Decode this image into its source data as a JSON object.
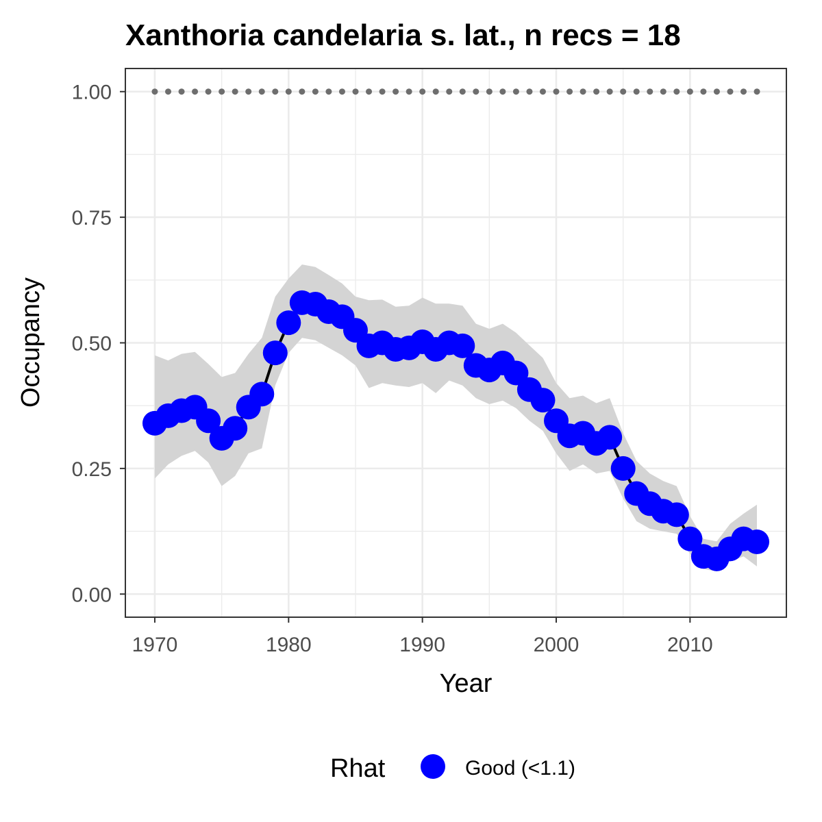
{
  "chart_data": {
    "type": "line",
    "title": "Xanthoria candelaria s. lat., n recs = 18",
    "xlabel": "Year",
    "ylabel": "Occupancy",
    "xlim": [
      1967.8,
      2017.2
    ],
    "ylim": [
      -0.046,
      1.046
    ],
    "x_ticks": [
      1970,
      1980,
      1990,
      2000,
      2010
    ],
    "x_tick_labels": [
      "1970",
      "1980",
      "1990",
      "2000",
      "2010"
    ],
    "y_ticks": [
      0,
      0.25,
      0.5,
      0.75,
      1.0
    ],
    "y_tick_labels": [
      "0.00",
      "0.25",
      "0.50",
      "0.75",
      "1.00"
    ],
    "grid": true,
    "x": [
      1970,
      1971,
      1972,
      1973,
      1974,
      1975,
      1976,
      1977,
      1978,
      1979,
      1980,
      1981,
      1982,
      1983,
      1984,
      1985,
      1986,
      1987,
      1988,
      1989,
      1990,
      1991,
      1992,
      1993,
      1994,
      1995,
      1996,
      1997,
      1998,
      1999,
      2000,
      2001,
      2002,
      2003,
      2004,
      2005,
      2006,
      2007,
      2008,
      2009,
      2010,
      2011,
      2012,
      2013,
      2014,
      2015
    ],
    "series": [
      {
        "values": [
          0.34,
          0.355,
          0.365,
          0.372,
          0.345,
          0.31,
          0.33,
          0.372,
          0.398,
          0.48,
          0.54,
          0.58,
          0.577,
          0.562,
          0.552,
          0.525,
          0.494,
          0.5,
          0.487,
          0.49,
          0.502,
          0.487,
          0.5,
          0.494,
          0.455,
          0.446,
          0.46,
          0.44,
          0.407,
          0.386,
          0.345,
          0.315,
          0.32,
          0.3,
          0.312,
          0.25,
          0.2,
          0.18,
          0.165,
          0.158,
          0.11,
          0.075,
          0.07,
          0.09,
          0.11,
          0.104
        ],
        "lower": [
          0.23,
          0.258,
          0.275,
          0.285,
          0.262,
          0.215,
          0.235,
          0.28,
          0.29,
          0.415,
          0.48,
          0.51,
          0.505,
          0.49,
          0.475,
          0.455,
          0.41,
          0.42,
          0.415,
          0.412,
          0.42,
          0.4,
          0.425,
          0.415,
          0.39,
          0.378,
          0.385,
          0.37,
          0.345,
          0.325,
          0.28,
          0.245,
          0.258,
          0.24,
          0.245,
          0.19,
          0.145,
          0.13,
          0.125,
          0.12,
          0.08,
          0.05,
          0.045,
          0.065,
          0.075,
          0.055
        ],
        "upper": [
          0.475,
          0.465,
          0.478,
          0.482,
          0.458,
          0.432,
          0.44,
          0.478,
          0.51,
          0.592,
          0.628,
          0.656,
          0.651,
          0.635,
          0.618,
          0.592,
          0.585,
          0.586,
          0.572,
          0.574,
          0.59,
          0.578,
          0.578,
          0.574,
          0.538,
          0.528,
          0.538,
          0.52,
          0.495,
          0.47,
          0.42,
          0.39,
          0.395,
          0.38,
          0.39,
          0.32,
          0.265,
          0.24,
          0.225,
          0.215,
          0.155,
          0.11,
          0.105,
          0.14,
          0.16,
          0.178
        ]
      },
      {
        "values": [
          1,
          1,
          1,
          1,
          1,
          1,
          1,
          1,
          1,
          1,
          1,
          1,
          1,
          1,
          1,
          1,
          1,
          1,
          1,
          1,
          1,
          1,
          1,
          1,
          1,
          1,
          1,
          1,
          1,
          1,
          1,
          1,
          1,
          1,
          1,
          1,
          1,
          1,
          1,
          1,
          1,
          1,
          1,
          1,
          1,
          1
        ]
      }
    ],
    "legend": {
      "position": "bottom",
      "title": "Rhat",
      "entries": [
        {
          "label": "Good (<1.1)",
          "color": "#0000ff"
        }
      ]
    },
    "colors": {
      "point": "#0000ff",
      "line": "#000000",
      "ribbon": "#d4d4d4",
      "reference": "#6e6e6e",
      "grid": "#ebebeb",
      "border": "#333333"
    }
  }
}
